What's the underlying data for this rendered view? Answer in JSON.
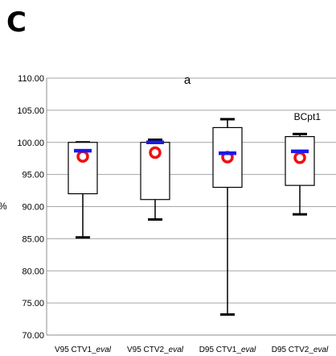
{
  "panel_letter": "C",
  "chart_data": {
    "type": "box",
    "title": "a",
    "ylabel": "%",
    "xlabel": "",
    "annotation": "BCpt1",
    "ylim": [
      70,
      110
    ],
    "yticks": [
      70,
      75,
      80,
      85,
      90,
      95,
      100,
      105,
      110
    ],
    "ytick_labels": [
      "70.00",
      "75.00",
      "80.00",
      "85.00",
      "90.00",
      "95.00",
      "100.00",
      "105.00",
      "110.00"
    ],
    "grid": true,
    "categories": [
      {
        "main": "V95 CTV1_",
        "italic": "eval"
      },
      {
        "main": "V95 CTV2_",
        "italic": "eval"
      },
      {
        "main": "D95 CTV1_",
        "italic": "eval"
      },
      {
        "main": "D95 CTV2_",
        "italic": "eval"
      }
    ],
    "boxes": [
      {
        "min": 85.2,
        "q1": 92.0,
        "median": 92.0,
        "q3": 100.0,
        "max": 100.0,
        "mean": 97.8,
        "marker": 98.7
      },
      {
        "min": 88.0,
        "q1": 91.1,
        "median": 91.1,
        "q3": 100.0,
        "max": 100.4,
        "mean": 98.4,
        "marker": 100.0
      },
      {
        "min": 73.2,
        "q1": 93.0,
        "median": 93.0,
        "q3": 102.3,
        "max": 103.6,
        "mean": 97.7,
        "marker": 98.3
      },
      {
        "min": 88.8,
        "q1": 93.3,
        "median": 93.3,
        "q3": 100.9,
        "max": 101.3,
        "mean": 97.6,
        "marker": 98.6
      }
    ],
    "colors": {
      "mean_marker": "#ee1111",
      "blue_marker": "#1a1aee",
      "grid": "#a6a6a6",
      "axis": "#8c8c8c",
      "box": "#000000"
    }
  }
}
